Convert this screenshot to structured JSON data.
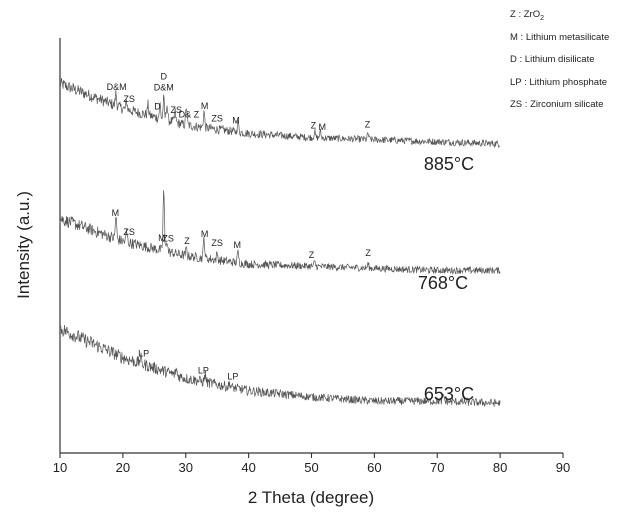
{
  "chart_data": {
    "type": "line",
    "xlabel": "2 Theta (degree)",
    "ylabel": "Intensity (a.u.)",
    "xlim": [
      10,
      90
    ],
    "xticks": [
      "10",
      "20",
      "30",
      "40",
      "50",
      "60",
      "70",
      "80",
      "90"
    ],
    "yticks_shown": false,
    "series": [
      {
        "name": "885°C",
        "x_range": [
          10,
          80
        ],
        "baseline": [
          [
            10,
            1.78
          ],
          [
            20,
            1.66
          ],
          [
            30,
            1.58
          ],
          [
            40,
            1.54
          ],
          [
            50,
            1.52
          ],
          [
            60,
            1.51
          ],
          [
            70,
            1.5
          ],
          [
            80,
            1.49
          ]
        ],
        "noise": 0.03,
        "peaks": [
          [
            18.9,
            0.06
          ],
          [
            20.6,
            0.04
          ],
          [
            24.0,
            0.05
          ],
          [
            25.9,
            0.07
          ],
          [
            26.5,
            0.1
          ],
          [
            27.0,
            0.08
          ],
          [
            28.3,
            0.05
          ],
          [
            30.1,
            0.09
          ],
          [
            32.9,
            0.08
          ],
          [
            38.3,
            0.05
          ],
          [
            50.5,
            0.03
          ],
          [
            51.4,
            0.03
          ],
          [
            59.0,
            0.03
          ]
        ],
        "peak_labels": [
          {
            "label": "D&M",
            "x": 19.0
          },
          {
            "label": "ZS",
            "x": 21.0
          },
          {
            "label": "D",
            "x": 25.5
          },
          {
            "label": "D&M",
            "x": 26.5
          },
          {
            "label": "D",
            "x": 26.5
          },
          {
            "label": "ZS",
            "x": 28.5
          },
          {
            "label": "D& Z",
            "x": 30.5
          },
          {
            "label": "M",
            "x": 33.0
          },
          {
            "label": "ZS",
            "x": 35.0
          },
          {
            "label": "M",
            "x": 38.0
          },
          {
            "label": "Z",
            "x": 50.3
          },
          {
            "label": "M",
            "x": 51.7
          },
          {
            "label": "Z",
            "x": 58.9
          }
        ]
      },
      {
        "name": "768°C",
        "x_range": [
          10,
          80
        ],
        "baseline": [
          [
            10,
            1.13
          ],
          [
            20,
            1.02
          ],
          [
            30,
            0.95
          ],
          [
            40,
            0.91
          ],
          [
            50,
            0.9
          ],
          [
            60,
            0.89
          ],
          [
            70,
            0.88
          ],
          [
            80,
            0.88
          ]
        ],
        "noise": 0.03,
        "peaks": [
          [
            18.9,
            0.11
          ],
          [
            20.6,
            0.05
          ],
          [
            26.5,
            0.3
          ],
          [
            27.0,
            0.06
          ],
          [
            30.1,
            0.03
          ],
          [
            32.9,
            0.1
          ],
          [
            35.0,
            0.03
          ],
          [
            38.3,
            0.05
          ],
          [
            50.5,
            0.02
          ],
          [
            59.0,
            0.02
          ]
        ],
        "peak_labels": [
          {
            "label": "M",
            "x": 18.8
          },
          {
            "label": "ZS",
            "x": 21.0
          },
          {
            "label": "M",
            "x": 26.2
          },
          {
            "label": "ZS",
            "x": 27.2
          },
          {
            "label": "Z",
            "x": 30.2
          },
          {
            "label": "M",
            "x": 33.0
          },
          {
            "label": "ZS",
            "x": 35.0
          },
          {
            "label": "M",
            "x": 38.2
          },
          {
            "label": "Z",
            "x": 50.0
          },
          {
            "label": "Z",
            "x": 59.0
          }
        ]
      },
      {
        "name": "653°C",
        "x_range": [
          10,
          80
        ],
        "baseline": [
          [
            10,
            0.6
          ],
          [
            20,
            0.46
          ],
          [
            30,
            0.36
          ],
          [
            40,
            0.3
          ],
          [
            50,
            0.27
          ],
          [
            60,
            0.25
          ],
          [
            70,
            0.25
          ],
          [
            80,
            0.24
          ]
        ],
        "noise": 0.035,
        "peaks": [
          [
            22.8,
            0.03
          ],
          [
            28.5,
            0.03
          ],
          [
            33.1,
            0.04
          ],
          [
            37.0,
            0.02
          ],
          [
            71.0,
            0.03
          ]
        ],
        "peak_labels": [
          {
            "label": "LP",
            "x": 23.3
          },
          {
            "label": "LP",
            "x": 32.8
          },
          {
            "label": "LP",
            "x": 37.5
          }
        ]
      }
    ],
    "legend": {
      "placement": "top-right",
      "entries": [
        {
          "abbr": "Z",
          "sep": " : ",
          "text": "ZrO",
          "sub": "2"
        },
        {
          "abbr": "M",
          "sep": " : ",
          "text": "Lithium metasilicate"
        },
        {
          "abbr": "D",
          "sep": " : ",
          "text": "Lithium disilicate"
        },
        {
          "abbr": "LP",
          "sep": " : ",
          "text": "Lithium phosphate"
        },
        {
          "abbr": "ZS",
          "sep": " : ",
          "text": "Zirconium silicate"
        }
      ]
    }
  }
}
